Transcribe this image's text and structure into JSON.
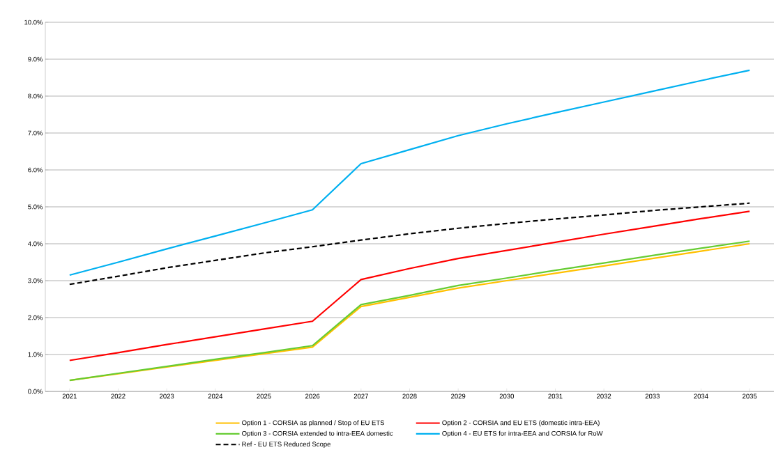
{
  "chart_data": {
    "type": "line",
    "categories": [
      "2021",
      "2022",
      "2023",
      "2024",
      "2025",
      "2026",
      "2027",
      "2028",
      "2029",
      "2030",
      "2031",
      "2032",
      "2033",
      "2034",
      "2035"
    ],
    "series": [
      {
        "name": "Option 1 - CORSIA as planned / Stop of EU ETS",
        "color": "#ffc000",
        "values": [
          0.3,
          0.48,
          0.66,
          0.84,
          1.02,
          1.2,
          2.3,
          2.55,
          2.8,
          3.0,
          3.2,
          3.4,
          3.6,
          3.8,
          4.0
        ]
      },
      {
        "name": "Option 2 - CORSIA and EU ETS (domestic intra-EEA)",
        "color": "#ff0000",
        "values": [
          0.84,
          1.05,
          1.27,
          1.48,
          1.69,
          1.9,
          3.03,
          3.33,
          3.6,
          3.82,
          4.04,
          4.26,
          4.47,
          4.68,
          4.88
        ]
      },
      {
        "name": "Option 3 - CORSIA extended to intra-EEA domestic",
        "color": "#66cc33",
        "values": [
          0.3,
          0.49,
          0.68,
          0.87,
          1.05,
          1.24,
          2.35,
          2.6,
          2.87,
          3.07,
          3.28,
          3.48,
          3.68,
          3.88,
          4.07
        ]
      },
      {
        "name": "Option 4 - EU ETS for intra-EEA and CORSIA for RoW",
        "color": "#00b0f0",
        "values": [
          3.15,
          3.5,
          3.86,
          4.21,
          4.56,
          4.92,
          6.17,
          6.55,
          6.93,
          7.25,
          7.55,
          7.84,
          8.13,
          8.42,
          8.7
        ]
      },
      {
        "name": "Ref - EU ETS Reduced Scope",
        "color": "#000000",
        "line_style": "dashed",
        "values": [
          2.9,
          3.12,
          3.35,
          3.55,
          3.75,
          3.92,
          4.1,
          4.27,
          4.42,
          4.55,
          4.67,
          4.78,
          4.9,
          5.0,
          5.1
        ]
      }
    ],
    "ylim": [
      0,
      10
    ],
    "yticks": [
      {
        "value": 0,
        "label": "0.0%"
      },
      {
        "value": 1,
        "label": "1.0%"
      },
      {
        "value": 2,
        "label": "2.0%"
      },
      {
        "value": 3,
        "label": "3.0%"
      },
      {
        "value": 4,
        "label": "4.0%"
      },
      {
        "value": 5,
        "label": "5.0%"
      },
      {
        "value": 6,
        "label": "6.0%"
      },
      {
        "value": 7,
        "label": "7.0%"
      },
      {
        "value": 8,
        "label": "8.0%"
      },
      {
        "value": 9,
        "label": "9.0%"
      },
      {
        "value": 10,
        "label": "10.0%"
      }
    ],
    "grid": "y",
    "legend": "bottom"
  }
}
